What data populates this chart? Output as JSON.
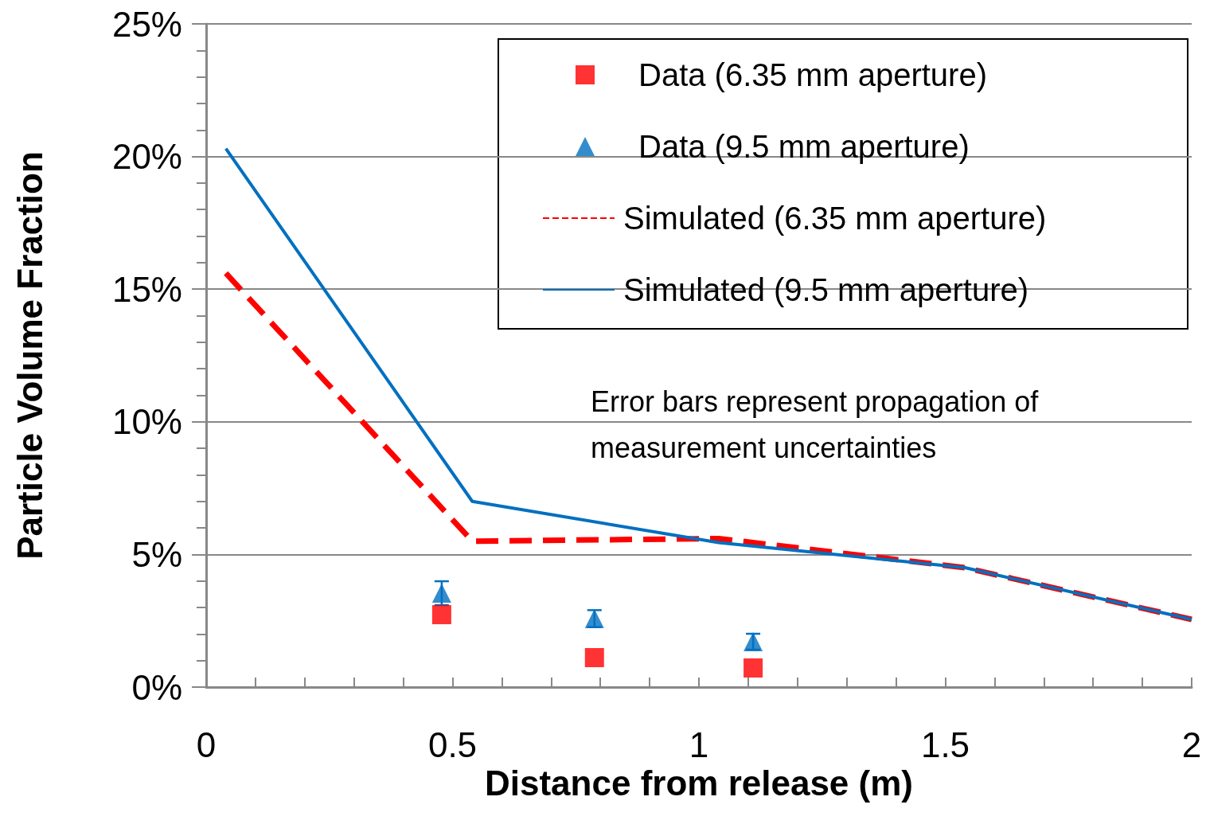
{
  "chart_data": {
    "type": "scatter",
    "xlabel": "Distance from release (m)",
    "ylabel": "Particle Volume Fraction",
    "xlim": [
      0,
      2
    ],
    "xticks": [
      0,
      0.5,
      1,
      1.5,
      2
    ],
    "ylim": [
      0,
      25
    ],
    "yticks": [
      {
        "value": 0,
        "label": "0%"
      },
      {
        "value": 5,
        "label": "5%"
      },
      {
        "value": 10,
        "label": "10%"
      },
      {
        "value": 15,
        "label": "15%"
      },
      {
        "value": 20,
        "label": "20%"
      },
      {
        "value": 25,
        "label": "25%"
      }
    ],
    "grid": "y",
    "legend": "top right",
    "annotations": [
      "Error bars represent propagation of measurement uncertainties"
    ],
    "series": [
      {
        "name": "Data (6.35 mm aperture)",
        "type": "scatter",
        "marker": "square",
        "color": "#ff0000",
        "x": [
          0.478,
          0.788,
          1.11
        ],
        "values": [
          2.73,
          1.11,
          0.72
        ]
      },
      {
        "name": "Data (9.5 mm aperture)",
        "type": "scatter",
        "marker": "triangle",
        "color": "#0070c0",
        "x": [
          0.478,
          0.788,
          1.11
        ],
        "values": [
          3.54,
          2.58,
          1.71
        ],
        "errors": [
          0.45,
          0.32,
          0.3
        ]
      },
      {
        "name": "Simulated (6.35 mm aperture)",
        "type": "line",
        "marker": "none",
        "line_style": "dashed",
        "color": "#ff0000",
        "x": [
          0.04,
          0.54,
          1.04,
          1.54,
          2.0
        ],
        "values": [
          15.6,
          5.5,
          5.6,
          4.5,
          2.55
        ]
      },
      {
        "name": "Simulated (9.5 mm aperture)",
        "type": "line",
        "marker": "none",
        "line_style": "solid",
        "color": "#0070c0",
        "x": [
          0.04,
          0.54,
          1.04,
          1.54,
          2.0
        ],
        "values": [
          20.3,
          7.0,
          5.45,
          4.5,
          2.55
        ]
      }
    ]
  }
}
